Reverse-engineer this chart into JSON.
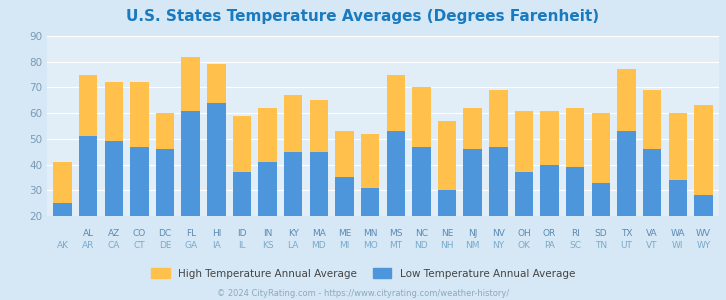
{
  "title": "U.S. States Temperature Averages (Degrees Farenheit)",
  "title_color": "#1a7abf",
  "states_top": [
    "AL",
    "AZ",
    "CO",
    "DC",
    "FL",
    "HI",
    "ID",
    "IN",
    "KY",
    "MA",
    "ME",
    "MN",
    "MS",
    "NC",
    "NE",
    "NJ",
    "NV",
    "OH",
    "OR",
    "RI",
    "SD",
    "TX",
    "VA",
    "WA",
    "WV"
  ],
  "states_bot": [
    "AK",
    "AR",
    "CA",
    "CT",
    "DE",
    "GA",
    "IA",
    "IL",
    "KS",
    "LA",
    "MD",
    "MI",
    "MO",
    "MT",
    "ND",
    "NH",
    "NM",
    "NY",
    "OK",
    "PA",
    "SC",
    "TN",
    "UT",
    "VT",
    "WI",
    "WY"
  ],
  "high": [
    41,
    75,
    72,
    72,
    60,
    82,
    79,
    59,
    62,
    67,
    65,
    53,
    52,
    75,
    70,
    57,
    62,
    69,
    61,
    61,
    62,
    60,
    77,
    69,
    60,
    63
  ],
  "low": [
    25,
    51,
    49,
    47,
    46,
    61,
    64,
    37,
    41,
    45,
    45,
    35,
    31,
    53,
    47,
    30,
    46,
    47,
    37,
    40,
    39,
    33,
    53,
    46,
    34,
    28
  ],
  "high_color": "#ffc04c",
  "low_color": "#4d96db",
  "bg_color": "#d6e8f5",
  "plot_bg_color": "#e2eef7",
  "grid_color": "#ffffff",
  "ytick_color": "#7a9ab5",
  "xtick_top_color": "#5a8ab5",
  "xtick_bot_color": "#7aaacc",
  "footer": "© 2024 CityRating.com - https://www.cityrating.com/weather-history/",
  "footer_color": "#8aaabf",
  "legend_label_high": "High Temperature Annual Average",
  "legend_label_low": "Low Temperature Annual Average",
  "ylim": [
    20,
    90
  ],
  "yticks": [
    20,
    30,
    40,
    50,
    60,
    70,
    80,
    90
  ]
}
